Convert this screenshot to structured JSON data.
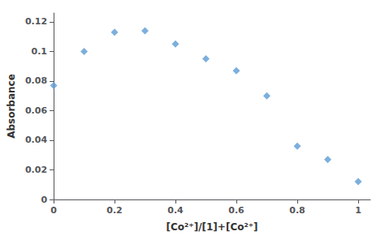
{
  "chart_data": {
    "type": "scatter",
    "x": [
      0.0,
      0.1,
      0.2,
      0.3,
      0.4,
      0.5,
      0.6,
      0.7,
      0.8,
      0.9,
      1.0
    ],
    "values": [
      0.077,
      0.1,
      0.113,
      0.114,
      0.105,
      0.095,
      0.087,
      0.07,
      0.036,
      0.027,
      0.012
    ],
    "color": "#5b9bd5",
    "marker": "diamond",
    "xlabel": "[Co²⁺]/[1]+[Co²⁺]",
    "ylabel": "Absorbance",
    "xlim": [
      0,
      1.04
    ],
    "ylim": [
      0,
      0.126
    ],
    "xticks": [
      0,
      0.2,
      0.4,
      0.6,
      0.8,
      1
    ],
    "yticks": [
      0,
      0.02,
      0.04,
      0.06,
      0.08,
      0.1,
      0.12
    ],
    "grid": false
  }
}
